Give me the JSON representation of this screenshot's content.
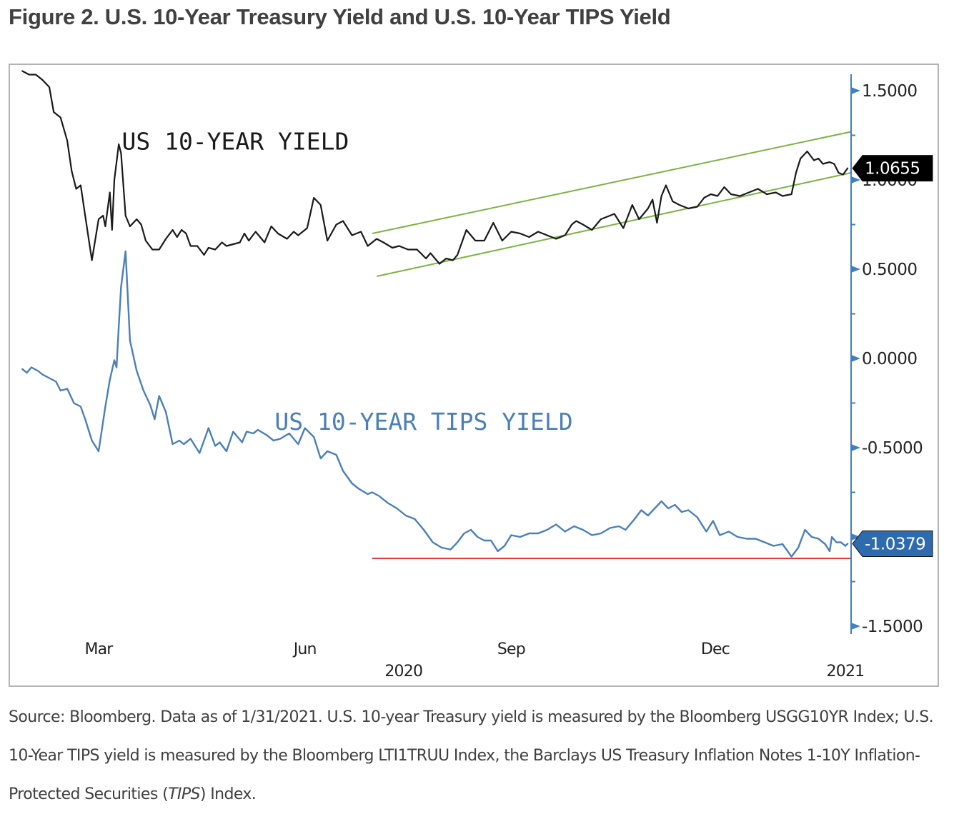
{
  "figure": {
    "title": "Figure 2. U.S. 10-Year Treasury Yield and U.S. 10-Year TIPS Yield",
    "caption_parts": [
      "Source: Bloomberg. Data as of 1/31/2021. U.S. 10-year Treasury yield is measured by the Bloomberg USGG10YR Index; U.S. 10-Year TIPS yield is measured by the Bloomberg LTI1TRUU Index, the Barclays US Treasury Inflation Notes 1-10Y Inflation-Protected Securities (",
      "TIPS",
      ") Index."
    ]
  },
  "colors": {
    "treasury": "#1a1a1a",
    "tips": "#4a7fb8",
    "channel": "#7cb342",
    "support": "#e03a3a",
    "axis": "#3f7fc2",
    "treasury_callout_bg": "#000000",
    "tips_callout_bg": "#2e6aae"
  },
  "chart_data": {
    "type": "line",
    "title": "",
    "xlabel": "",
    "ylabel": "",
    "ylim": [
      -1.6,
      1.6
    ],
    "y_axis_side": "right",
    "y_ticks": [
      1.5,
      1.0,
      0.5,
      0.0,
      -0.5,
      -1.0,
      -1.5
    ],
    "y_tick_labels": [
      "1.5000",
      "1.0000",
      "0.5000",
      "0.0000",
      "-0.5000",
      "",
      "-1.5000"
    ],
    "x_range": [
      "2020-01-27",
      "2021-01-31"
    ],
    "x_ticks": [
      {
        "date": "2020-03-01",
        "label": "Mar"
      },
      {
        "date": "2020-06-01",
        "label": "Jun"
      },
      {
        "date": "2020-09-01",
        "label": "Sep"
      },
      {
        "date": "2020-12-01",
        "label": "Dec"
      }
    ],
    "year_labels": [
      {
        "date": "2020-07-15",
        "label": "2020"
      },
      {
        "date": "2021-01-28",
        "label": "2021"
      }
    ],
    "grid": false,
    "legend": "none",
    "annotations": [
      {
        "text": "US 10-YEAR YIELD",
        "series": "treasury",
        "date": "2020-05-01",
        "value": 1.17
      },
      {
        "text": "US 10-YEAR TIPS YIELD",
        "series": "tips",
        "date": "2020-07-24",
        "value": -0.4
      }
    ],
    "last_value_labels": [
      {
        "series": "treasury",
        "label": "1.0655",
        "value": 1.0655
      },
      {
        "series": "tips",
        "label": "-1.0379",
        "value": -1.0379
      }
    ],
    "reference_lines": [
      {
        "name": "upper-channel",
        "color_key": "channel",
        "from": [
          "2020-07-01",
          0.7
        ],
        "to": [
          "2021-01-31",
          1.27
        ]
      },
      {
        "name": "lower-channel",
        "color_key": "channel",
        "from": [
          "2020-07-03",
          0.46
        ],
        "to": [
          "2021-01-31",
          1.04
        ]
      },
      {
        "name": "tips-support",
        "color_key": "support",
        "from": [
          "2020-07-01",
          -1.12
        ],
        "to": [
          "2021-01-31",
          -1.12
        ]
      }
    ],
    "series": [
      {
        "name": "US 10-Year Treasury Yield",
        "key": "treasury",
        "points": [
          [
            "2020-01-27",
            1.61
          ],
          [
            "2020-01-30",
            1.59
          ],
          [
            "2020-02-02",
            1.59
          ],
          [
            "2020-02-05",
            1.56
          ],
          [
            "2020-02-08",
            1.52
          ],
          [
            "2020-02-10",
            1.38
          ],
          [
            "2020-02-13",
            1.35
          ],
          [
            "2020-02-16",
            1.22
          ],
          [
            "2020-02-18",
            1.05
          ],
          [
            "2020-02-20",
            0.95
          ],
          [
            "2020-02-22",
            0.97
          ],
          [
            "2020-02-24",
            0.8
          ],
          [
            "2020-02-27",
            0.55
          ],
          [
            "2020-03-01",
            0.78
          ],
          [
            "2020-03-03",
            0.8
          ],
          [
            "2020-03-04",
            0.74
          ],
          [
            "2020-03-06",
            0.93
          ],
          [
            "2020-03-07",
            0.72
          ],
          [
            "2020-03-08",
            1.0
          ],
          [
            "2020-03-10",
            1.2
          ],
          [
            "2020-03-11",
            1.15
          ],
          [
            "2020-03-13",
            0.8
          ],
          [
            "2020-03-15",
            0.74
          ],
          [
            "2020-03-18",
            0.78
          ],
          [
            "2020-03-20",
            0.75
          ],
          [
            "2020-03-22",
            0.66
          ],
          [
            "2020-03-25",
            0.61
          ],
          [
            "2020-03-28",
            0.61
          ],
          [
            "2020-03-31",
            0.67
          ],
          [
            "2020-04-03",
            0.72
          ],
          [
            "2020-04-05",
            0.68
          ],
          [
            "2020-04-07",
            0.72
          ],
          [
            "2020-04-09",
            0.7
          ],
          [
            "2020-04-11",
            0.63
          ],
          [
            "2020-04-14",
            0.63
          ],
          [
            "2020-04-17",
            0.58
          ],
          [
            "2020-04-19",
            0.62
          ],
          [
            "2020-04-22",
            0.61
          ],
          [
            "2020-04-25",
            0.65
          ],
          [
            "2020-04-27",
            0.63
          ],
          [
            "2020-04-30",
            0.64
          ],
          [
            "2020-05-03",
            0.65
          ],
          [
            "2020-05-05",
            0.7
          ],
          [
            "2020-05-07",
            0.66
          ],
          [
            "2020-05-10",
            0.71
          ],
          [
            "2020-05-14",
            0.65
          ],
          [
            "2020-05-17",
            0.74
          ],
          [
            "2020-05-20",
            0.7
          ],
          [
            "2020-05-24",
            0.67
          ],
          [
            "2020-05-27",
            0.71
          ],
          [
            "2020-05-29",
            0.69
          ],
          [
            "2020-06-02",
            0.73
          ],
          [
            "2020-06-05",
            0.9
          ],
          [
            "2020-06-08",
            0.86
          ],
          [
            "2020-06-11",
            0.66
          ],
          [
            "2020-06-15",
            0.75
          ],
          [
            "2020-06-18",
            0.77
          ],
          [
            "2020-06-22",
            0.69
          ],
          [
            "2020-06-26",
            0.71
          ],
          [
            "2020-06-29",
            0.63
          ],
          [
            "2020-07-03",
            0.67
          ],
          [
            "2020-07-06",
            0.65
          ],
          [
            "2020-07-10",
            0.62
          ],
          [
            "2020-07-13",
            0.63
          ],
          [
            "2020-07-17",
            0.61
          ],
          [
            "2020-07-21",
            0.61
          ],
          [
            "2020-07-25",
            0.56
          ],
          [
            "2020-07-27",
            0.59
          ],
          [
            "2020-07-31",
            0.53
          ],
          [
            "2020-08-03",
            0.56
          ],
          [
            "2020-08-06",
            0.55
          ],
          [
            "2020-08-08",
            0.58
          ],
          [
            "2020-08-12",
            0.72
          ],
          [
            "2020-08-16",
            0.66
          ],
          [
            "2020-08-20",
            0.66
          ],
          [
            "2020-08-24",
            0.76
          ],
          [
            "2020-08-28",
            0.66
          ],
          [
            "2020-09-01",
            0.71
          ],
          [
            "2020-09-05",
            0.7
          ],
          [
            "2020-09-09",
            0.68
          ],
          [
            "2020-09-13",
            0.71
          ],
          [
            "2020-09-17",
            0.69
          ],
          [
            "2020-09-21",
            0.67
          ],
          [
            "2020-09-25",
            0.69
          ],
          [
            "2020-09-28",
            0.75
          ],
          [
            "2020-09-30",
            0.77
          ],
          [
            "2020-10-03",
            0.75
          ],
          [
            "2020-10-07",
            0.72
          ],
          [
            "2020-10-11",
            0.78
          ],
          [
            "2020-10-15",
            0.8
          ],
          [
            "2020-10-17",
            0.81
          ],
          [
            "2020-10-21",
            0.73
          ],
          [
            "2020-10-25",
            0.86
          ],
          [
            "2020-10-28",
            0.78
          ],
          [
            "2020-11-01",
            0.84
          ],
          [
            "2020-11-03",
            0.89
          ],
          [
            "2020-11-05",
            0.76
          ],
          [
            "2020-11-07",
            0.91
          ],
          [
            "2020-11-09",
            0.97
          ],
          [
            "2020-11-12",
            0.88
          ],
          [
            "2020-11-15",
            0.86
          ],
          [
            "2020-11-19",
            0.84
          ],
          [
            "2020-11-23",
            0.85
          ],
          [
            "2020-11-26",
            0.9
          ],
          [
            "2020-11-29",
            0.92
          ],
          [
            "2020-12-02",
            0.91
          ],
          [
            "2020-12-05",
            0.96
          ],
          [
            "2020-12-08",
            0.92
          ],
          [
            "2020-12-12",
            0.91
          ],
          [
            "2020-12-16",
            0.93
          ],
          [
            "2020-12-20",
            0.95
          ],
          [
            "2020-12-24",
            0.92
          ],
          [
            "2020-12-28",
            0.93
          ],
          [
            "2020-12-31",
            0.91
          ],
          [
            "2021-01-04",
            0.92
          ],
          [
            "2021-01-06",
            1.04
          ],
          [
            "2021-01-08",
            1.12
          ],
          [
            "2021-01-11",
            1.16
          ],
          [
            "2021-01-14",
            1.11
          ],
          [
            "2021-01-16",
            1.12
          ],
          [
            "2021-01-18",
            1.09
          ],
          [
            "2021-01-21",
            1.1
          ],
          [
            "2021-01-23",
            1.09
          ],
          [
            "2021-01-25",
            1.04
          ],
          [
            "2021-01-27",
            1.03
          ],
          [
            "2021-01-29",
            1.0655
          ]
        ]
      },
      {
        "name": "US 10-Year TIPS Yield",
        "key": "tips",
        "points": [
          [
            "2020-01-27",
            -0.06
          ],
          [
            "2020-01-29",
            -0.08
          ],
          [
            "2020-01-31",
            -0.05
          ],
          [
            "2020-02-03",
            -0.07
          ],
          [
            "2020-02-05",
            -0.09
          ],
          [
            "2020-02-08",
            -0.11
          ],
          [
            "2020-02-11",
            -0.13
          ],
          [
            "2020-02-13",
            -0.18
          ],
          [
            "2020-02-16",
            -0.17
          ],
          [
            "2020-02-19",
            -0.25
          ],
          [
            "2020-02-22",
            -0.27
          ],
          [
            "2020-02-24",
            -0.34
          ],
          [
            "2020-02-27",
            -0.46
          ],
          [
            "2020-03-01",
            -0.52
          ],
          [
            "2020-03-04",
            -0.27
          ],
          [
            "2020-03-06",
            -0.12
          ],
          [
            "2020-03-08",
            -0.01
          ],
          [
            "2020-03-09",
            -0.05
          ],
          [
            "2020-03-10",
            0.18
          ],
          [
            "2020-03-11",
            0.4
          ],
          [
            "2020-03-13",
            0.6
          ],
          [
            "2020-03-15",
            0.1
          ],
          [
            "2020-03-18",
            -0.07
          ],
          [
            "2020-03-21",
            -0.18
          ],
          [
            "2020-03-24",
            -0.26
          ],
          [
            "2020-03-26",
            -0.34
          ],
          [
            "2020-03-28",
            -0.21
          ],
          [
            "2020-03-31",
            -0.3
          ],
          [
            "2020-04-03",
            -0.48
          ],
          [
            "2020-04-06",
            -0.46
          ],
          [
            "2020-04-08",
            -0.48
          ],
          [
            "2020-04-11",
            -0.45
          ],
          [
            "2020-04-15",
            -0.53
          ],
          [
            "2020-04-19",
            -0.39
          ],
          [
            "2020-04-22",
            -0.49
          ],
          [
            "2020-04-24",
            -0.47
          ],
          [
            "2020-04-27",
            -0.52
          ],
          [
            "2020-04-30",
            -0.41
          ],
          [
            "2020-05-04",
            -0.47
          ],
          [
            "2020-05-06",
            -0.41
          ],
          [
            "2020-05-09",
            -0.42
          ],
          [
            "2020-05-11",
            -0.4
          ],
          [
            "2020-05-15",
            -0.43
          ],
          [
            "2020-05-18",
            -0.46
          ],
          [
            "2020-05-21",
            -0.45
          ],
          [
            "2020-05-25",
            -0.42
          ],
          [
            "2020-05-29",
            -0.48
          ],
          [
            "2020-06-01",
            -0.39
          ],
          [
            "2020-06-05",
            -0.44
          ],
          [
            "2020-06-08",
            -0.56
          ],
          [
            "2020-06-11",
            -0.52
          ],
          [
            "2020-06-15",
            -0.54
          ],
          [
            "2020-06-18",
            -0.63
          ],
          [
            "2020-06-22",
            -0.7
          ],
          [
            "2020-06-25",
            -0.73
          ],
          [
            "2020-06-29",
            -0.76
          ],
          [
            "2020-07-01",
            -0.75
          ],
          [
            "2020-07-04",
            -0.77
          ],
          [
            "2020-07-08",
            -0.81
          ],
          [
            "2020-07-12",
            -0.84
          ],
          [
            "2020-07-16",
            -0.88
          ],
          [
            "2020-07-20",
            -0.9
          ],
          [
            "2020-07-24",
            -0.96
          ],
          [
            "2020-07-28",
            -1.03
          ],
          [
            "2020-08-01",
            -1.06
          ],
          [
            "2020-08-05",
            -1.07
          ],
          [
            "2020-08-08",
            -1.03
          ],
          [
            "2020-08-11",
            -0.98
          ],
          [
            "2020-08-14",
            -0.96
          ],
          [
            "2020-08-17",
            -1.0
          ],
          [
            "2020-08-20",
            -1.02
          ],
          [
            "2020-08-23",
            -1.02
          ],
          [
            "2020-08-26",
            -1.08
          ],
          [
            "2020-08-29",
            -1.05
          ],
          [
            "2020-09-01",
            -0.99
          ],
          [
            "2020-09-05",
            -1.0
          ],
          [
            "2020-09-09",
            -0.98
          ],
          [
            "2020-09-13",
            -0.98
          ],
          [
            "2020-09-17",
            -0.96
          ],
          [
            "2020-09-21",
            -0.93
          ],
          [
            "2020-09-25",
            -0.97
          ],
          [
            "2020-09-29",
            -0.94
          ],
          [
            "2020-10-03",
            -0.96
          ],
          [
            "2020-10-07",
            -0.99
          ],
          [
            "2020-10-11",
            -0.98
          ],
          [
            "2020-10-15",
            -0.95
          ],
          [
            "2020-10-19",
            -0.94
          ],
          [
            "2020-10-22",
            -0.96
          ],
          [
            "2020-10-26",
            -0.9
          ],
          [
            "2020-10-29",
            -0.85
          ],
          [
            "2020-11-01",
            -0.88
          ],
          [
            "2020-11-04",
            -0.84
          ],
          [
            "2020-11-07",
            -0.8
          ],
          [
            "2020-11-10",
            -0.84
          ],
          [
            "2020-11-13",
            -0.82
          ],
          [
            "2020-11-16",
            -0.86
          ],
          [
            "2020-11-19",
            -0.85
          ],
          [
            "2020-11-23",
            -0.89
          ],
          [
            "2020-11-27",
            -0.97
          ],
          [
            "2020-11-30",
            -0.91
          ],
          [
            "2020-12-03",
            -0.99
          ],
          [
            "2020-12-07",
            -0.97
          ],
          [
            "2020-12-11",
            -1.0
          ],
          [
            "2020-12-15",
            -1.01
          ],
          [
            "2020-12-19",
            -1.01
          ],
          [
            "2020-12-23",
            -1.03
          ],
          [
            "2020-12-27",
            -1.05
          ],
          [
            "2020-12-31",
            -1.04
          ],
          [
            "2021-01-04",
            -1.11
          ],
          [
            "2021-01-07",
            -1.06
          ],
          [
            "2021-01-10",
            -0.96
          ],
          [
            "2021-01-13",
            -1.0
          ],
          [
            "2021-01-16",
            -1.01
          ],
          [
            "2021-01-19",
            -1.04
          ],
          [
            "2021-01-21",
            -1.08
          ],
          [
            "2021-01-22",
            -1.0
          ],
          [
            "2021-01-24",
            -1.03
          ],
          [
            "2021-01-26",
            -1.03
          ],
          [
            "2021-01-28",
            -1.05
          ],
          [
            "2021-01-29",
            -1.0379
          ]
        ]
      }
    ]
  }
}
